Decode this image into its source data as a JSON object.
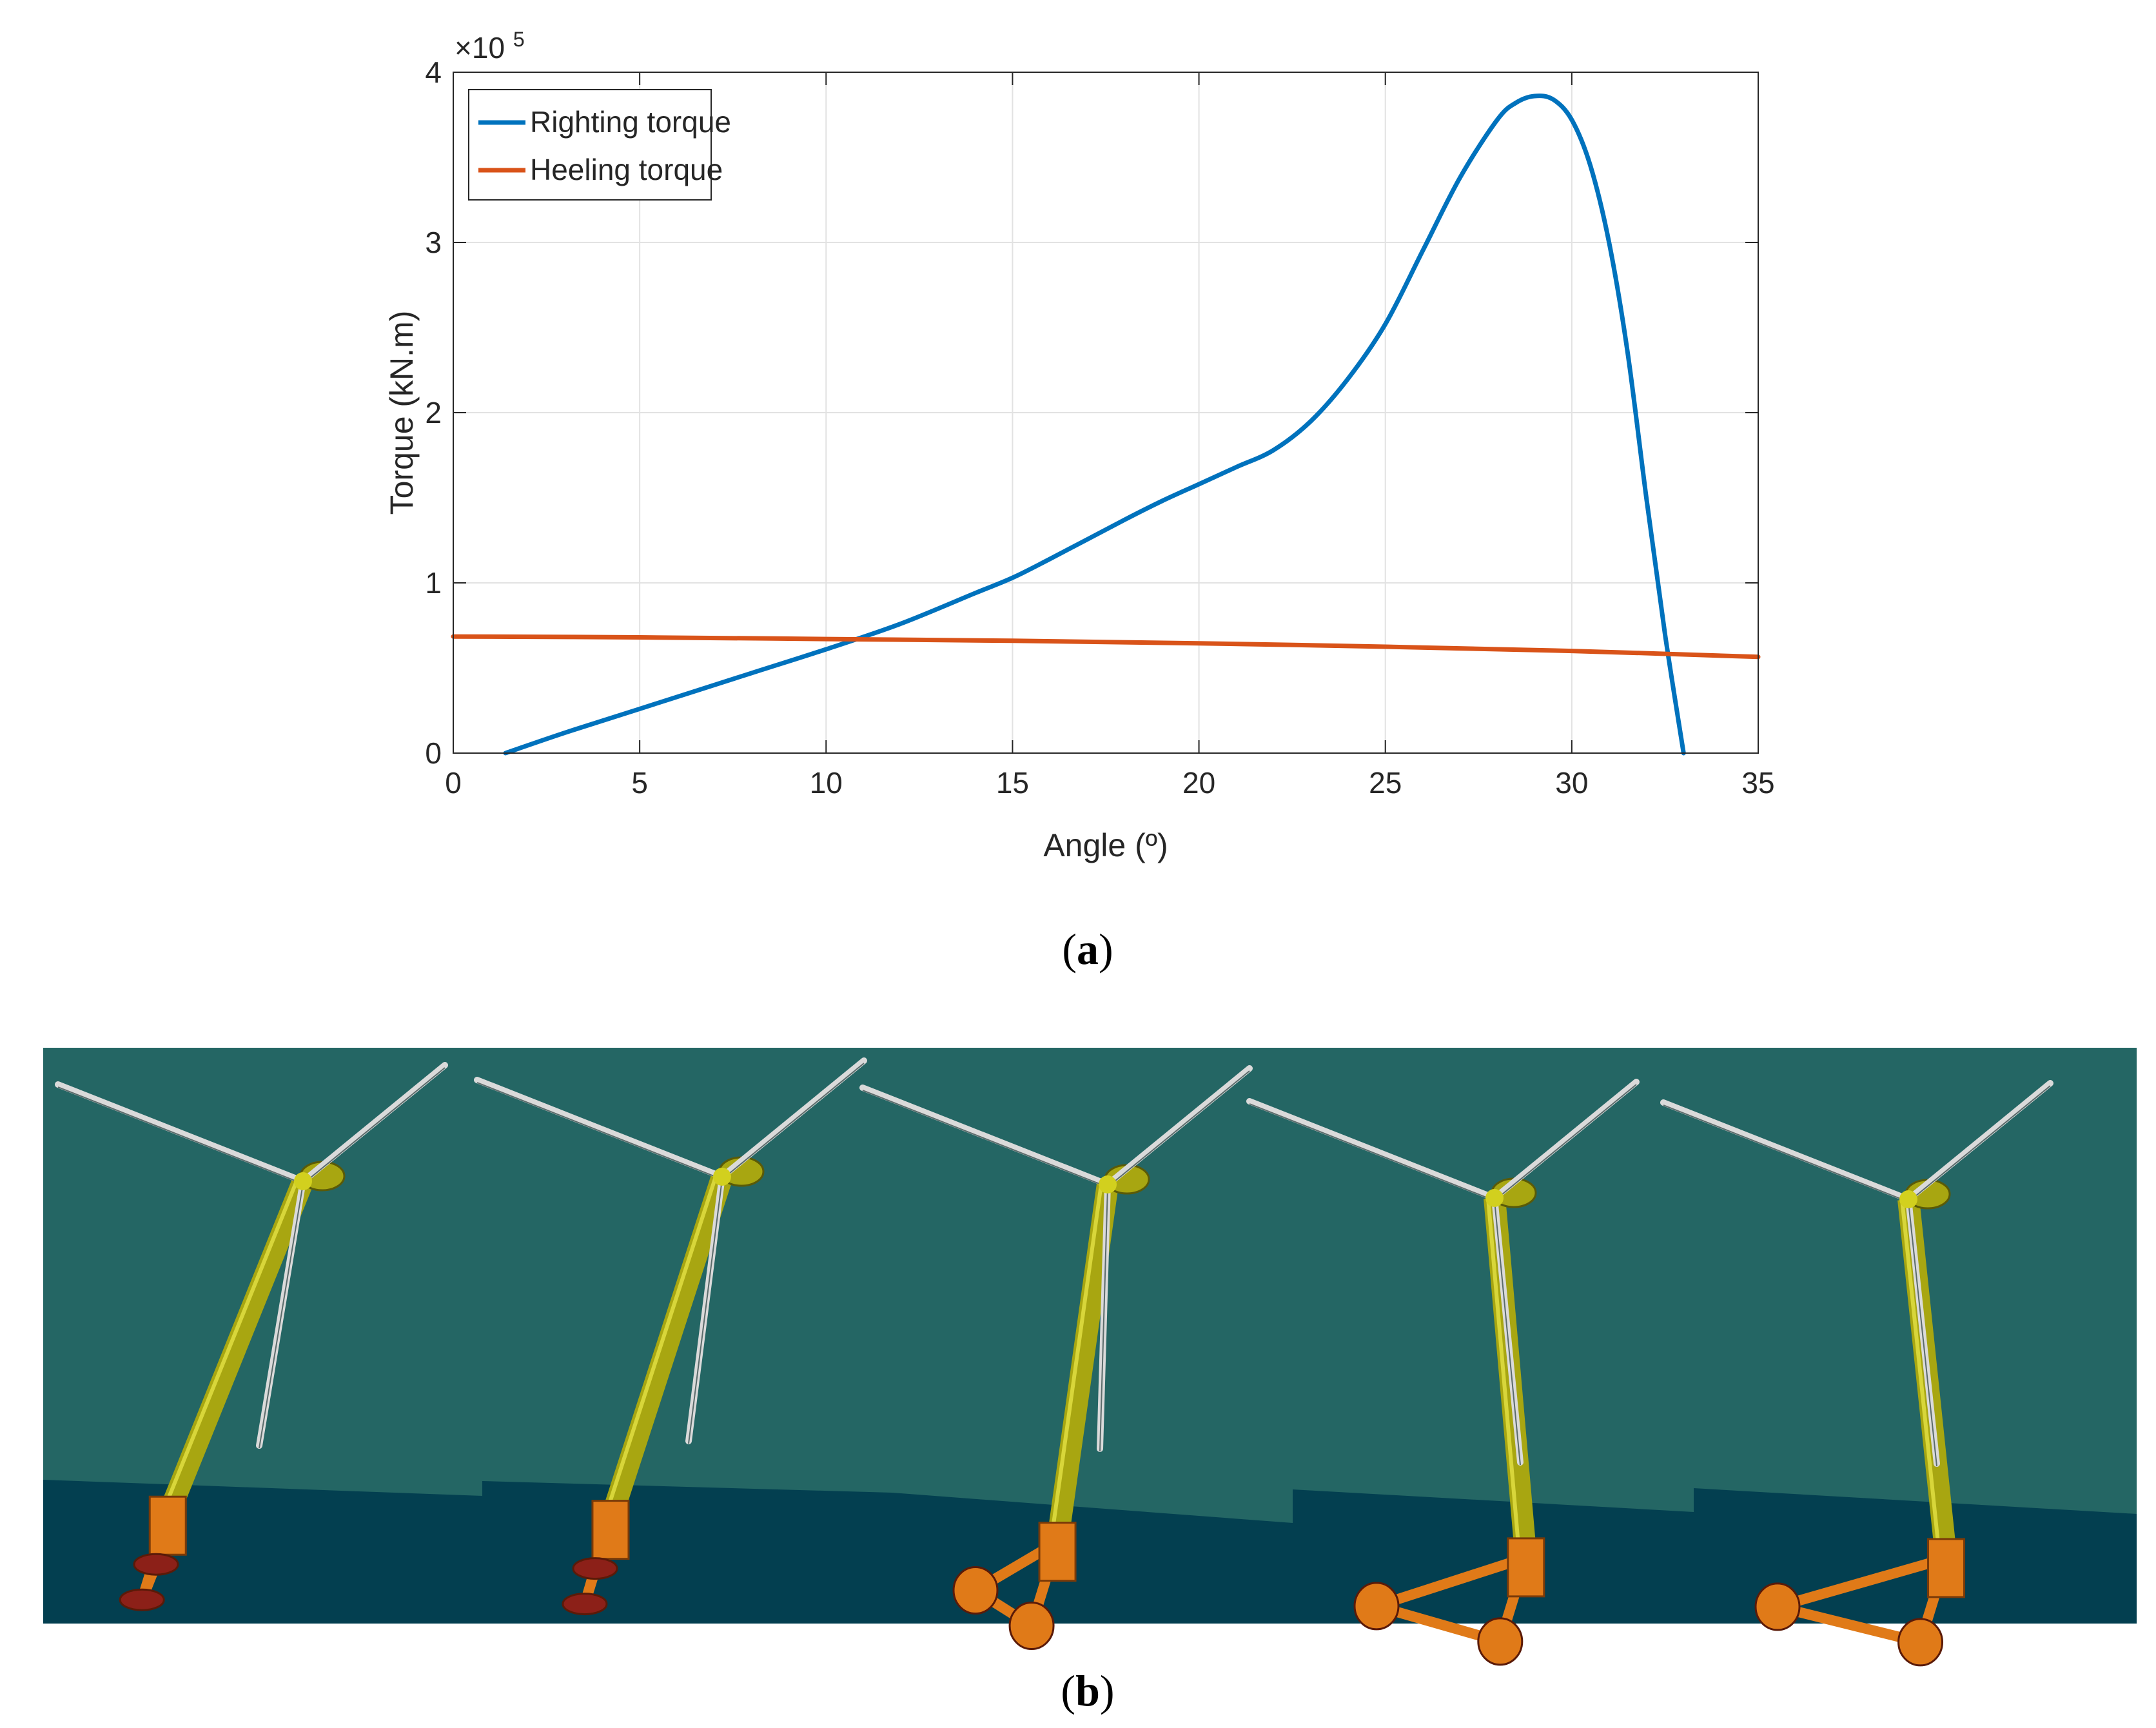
{
  "chart_data": {
    "type": "line",
    "title": "",
    "xlabel": "Angle (º)",
    "ylabel": "Torque (kN.m)",
    "y_multiplier": "×10",
    "y_multiplier_exponent": "5",
    "xlim": [
      0,
      35
    ],
    "ylim": [
      0,
      4
    ],
    "x_ticks": [
      0,
      5,
      10,
      15,
      20,
      25,
      30,
      35
    ],
    "y_ticks": [
      0,
      1,
      2,
      3,
      4
    ],
    "grid": true,
    "legend_position": "top-left",
    "series": [
      {
        "name": "Righting torque",
        "color": "#0072BD",
        "x": [
          1.4,
          3,
          5,
          8,
          10,
          12,
          14,
          15,
          16,
          18,
          19,
          20,
          21,
          22,
          23,
          24,
          25,
          26,
          27,
          28,
          28.5,
          29,
          29.5,
          30,
          30.5,
          31,
          31.5,
          32,
          32.5,
          33
        ],
        "y": [
          0,
          0.12,
          0.26,
          0.47,
          0.61,
          0.76,
          0.94,
          1.03,
          1.14,
          1.37,
          1.48,
          1.58,
          1.68,
          1.78,
          1.95,
          2.2,
          2.52,
          2.95,
          3.38,
          3.72,
          3.82,
          3.86,
          3.84,
          3.72,
          3.45,
          3.0,
          2.35,
          1.5,
          0.7,
          0.0
        ]
      },
      {
        "name": "Heeling torque",
        "color": "#D95319",
        "x": [
          0,
          5,
          10,
          15,
          20,
          25,
          30,
          35
        ],
        "y": [
          0.685,
          0.68,
          0.67,
          0.66,
          0.645,
          0.625,
          0.6,
          0.565
        ]
      }
    ]
  },
  "captions": {
    "a_open": "(",
    "a_letter": "a",
    "a_close": ")",
    "b_open": "(",
    "b_letter": "b",
    "b_close": ")"
  },
  "render_panel": {
    "frame_count": 5,
    "colors": {
      "sky": "#246664",
      "sea": "#033F50",
      "tower": "#A8A611",
      "blade": "#DADADA",
      "platform": "#E07A18",
      "pontoon": "#8C2018"
    }
  }
}
